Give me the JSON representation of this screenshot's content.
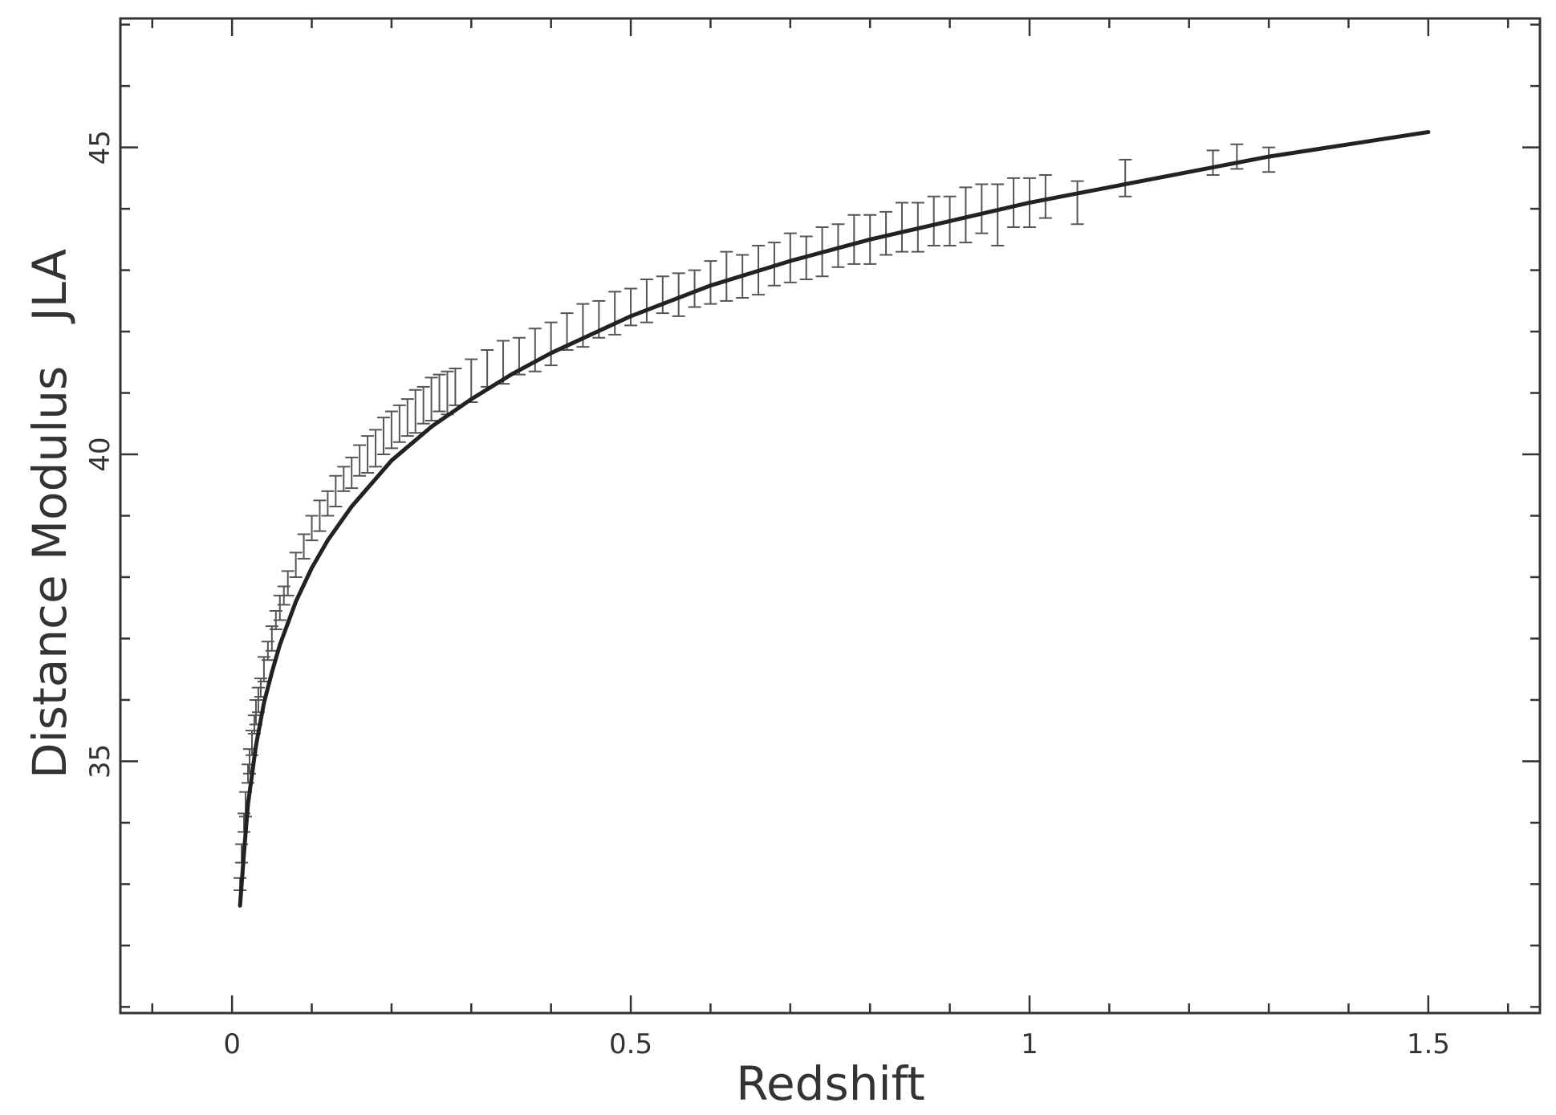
{
  "chart_data": {
    "type": "scatter",
    "title": "",
    "xlabel": "Redshift",
    "ylabel": "Distance Modulus   JLA",
    "xlim": [
      -0.14,
      1.64
    ],
    "ylim": [
      30.9,
      47.1
    ],
    "xticks": [
      0,
      0.5,
      1,
      1.5
    ],
    "xtick_labels": [
      "0",
      "0.5",
      "1",
      "1.5"
    ],
    "yticks": [
      35,
      40,
      45
    ],
    "ytick_labels": [
      "35",
      "40",
      "45"
    ],
    "grid": false,
    "legend": "none",
    "series": [
      {
        "type": "errorbar",
        "x": [
          0.01,
          0.012,
          0.015,
          0.017,
          0.02,
          0.022,
          0.025,
          0.028,
          0.03,
          0.033,
          0.036,
          0.04,
          0.045,
          0.05,
          0.055,
          0.06,
          0.065,
          0.07,
          0.08,
          0.09,
          0.1,
          0.11,
          0.12,
          0.13,
          0.14,
          0.15,
          0.16,
          0.17,
          0.18,
          0.19,
          0.2,
          0.21,
          0.22,
          0.23,
          0.24,
          0.25,
          0.26,
          0.27,
          0.28,
          0.3,
          0.32,
          0.34,
          0.36,
          0.38,
          0.4,
          0.42,
          0.44,
          0.46,
          0.48,
          0.5,
          0.52,
          0.54,
          0.56,
          0.58,
          0.6,
          0.62,
          0.64,
          0.66,
          0.68,
          0.7,
          0.72,
          0.74,
          0.76,
          0.78,
          0.8,
          0.82,
          0.84,
          0.86,
          0.88,
          0.9,
          0.92,
          0.94,
          0.96,
          0.98,
          1.0,
          1.02,
          1.06,
          1.12,
          1.23,
          1.26,
          1.3
        ],
        "y": [
          33.0,
          33.5,
          34.0,
          34.3,
          34.8,
          35.0,
          35.3,
          35.6,
          35.8,
          36.0,
          36.2,
          36.5,
          36.8,
          37.0,
          37.3,
          37.5,
          37.7,
          37.9,
          38.2,
          38.5,
          38.8,
          39.0,
          39.2,
          39.4,
          39.6,
          39.7,
          39.9,
          40.0,
          40.1,
          40.3,
          40.4,
          40.5,
          40.6,
          40.7,
          40.8,
          40.9,
          41.0,
          41.0,
          41.1,
          41.2,
          41.4,
          41.5,
          41.6,
          41.7,
          41.8,
          42.0,
          42.1,
          42.2,
          42.3,
          42.4,
          42.5,
          42.6,
          42.6,
          42.7,
          42.8,
          42.9,
          42.9,
          43.0,
          43.1,
          43.2,
          43.2,
          43.3,
          43.4,
          43.5,
          43.5,
          43.6,
          43.7,
          43.7,
          43.8,
          43.8,
          43.9,
          44.0,
          43.9,
          44.1,
          44.1,
          44.2,
          44.1,
          44.5,
          44.75,
          44.85,
          44.8
        ],
        "yerr": [
          0.1,
          0.15,
          0.15,
          0.2,
          0.15,
          0.2,
          0.2,
          0.15,
          0.2,
          0.2,
          0.15,
          0.2,
          0.15,
          0.2,
          0.15,
          0.2,
          0.15,
          0.2,
          0.2,
          0.2,
          0.2,
          0.25,
          0.2,
          0.25,
          0.2,
          0.25,
          0.25,
          0.3,
          0.3,
          0.3,
          0.3,
          0.3,
          0.3,
          0.35,
          0.3,
          0.35,
          0.3,
          0.35,
          0.3,
          0.35,
          0.3,
          0.35,
          0.3,
          0.35,
          0.35,
          0.3,
          0.35,
          0.3,
          0.35,
          0.3,
          0.35,
          0.3,
          0.35,
          0.3,
          0.35,
          0.4,
          0.35,
          0.4,
          0.35,
          0.4,
          0.35,
          0.4,
          0.35,
          0.4,
          0.4,
          0.35,
          0.4,
          0.4,
          0.4,
          0.4,
          0.45,
          0.4,
          0.5,
          0.4,
          0.4,
          0.35,
          0.35,
          0.3,
          0.2,
          0.2,
          0.2
        ],
        "color": "#555555"
      },
      {
        "type": "line",
        "x": [
          0.01,
          0.015,
          0.02,
          0.03,
          0.04,
          0.05,
          0.06,
          0.08,
          0.1,
          0.12,
          0.15,
          0.2,
          0.25,
          0.3,
          0.35,
          0.4,
          0.5,
          0.6,
          0.7,
          0.8,
          0.9,
          1.0,
          1.1,
          1.2,
          1.3,
          1.4,
          1.5
        ],
        "y": [
          32.65,
          33.5,
          34.3,
          35.25,
          35.95,
          36.45,
          36.9,
          37.6,
          38.15,
          38.6,
          39.15,
          39.9,
          40.45,
          40.9,
          41.3,
          41.65,
          42.25,
          42.75,
          43.15,
          43.5,
          43.8,
          44.1,
          44.35,
          44.6,
          44.85,
          45.05,
          45.25
        ],
        "color": "#222222"
      }
    ]
  }
}
